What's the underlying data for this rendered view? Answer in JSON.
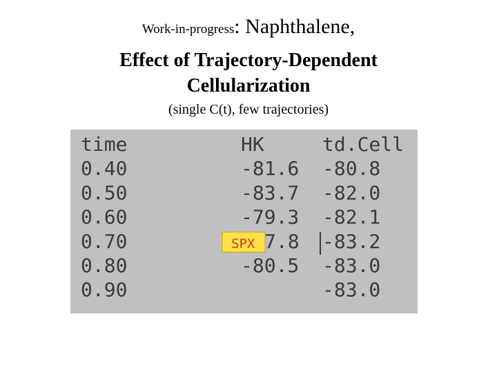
{
  "header": {
    "prefix": "Work-in-progress",
    "colon": ":",
    "subject": "Naphthalene,",
    "title_line_1": "Effect of Trajectory-Dependent",
    "title_line_2": "Cellularization",
    "subtitle": "(single C(t), few trajectories)"
  },
  "table": {
    "columns": [
      "time",
      "HK",
      "td.Cell"
    ],
    "rows": [
      [
        "0.40",
        "-81.6",
        "-80.8"
      ],
      [
        "0.50",
        "-83.7",
        "-82.0"
      ],
      [
        "0.60",
        "-79.3",
        "-82.1"
      ],
      [
        "0.70",
        "7.8",
        "-83.2"
      ],
      [
        "0.80",
        "-80.5",
        "-83.0"
      ],
      [
        "0.90",
        null,
        "-83.0"
      ]
    ],
    "overlay_label": "SPX"
  }
}
